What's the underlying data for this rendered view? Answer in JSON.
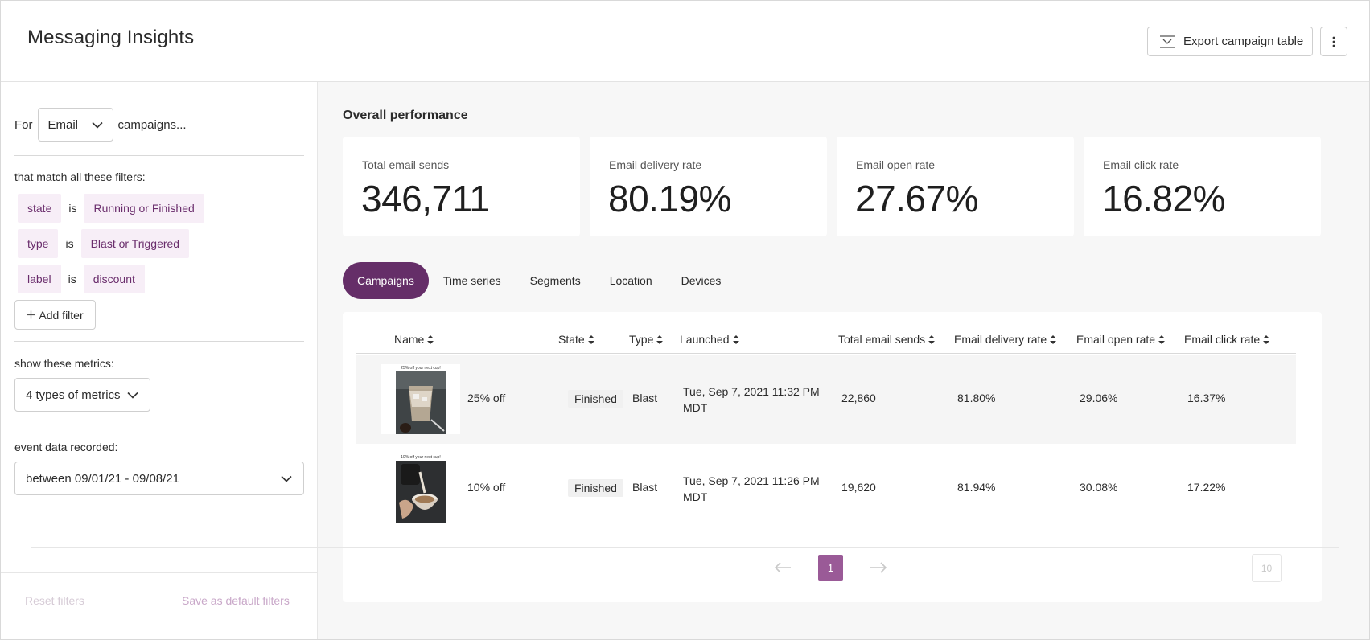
{
  "header": {
    "title": "Messaging Insights",
    "export_label": "Export campaign table",
    "export_icon": "export-tray-icon",
    "more_icon": "more-vertical-icon"
  },
  "sidebar": {
    "for_label": "For",
    "channel": "Email",
    "campaigns_suffix": "campaigns...",
    "filters_heading": "that match all these filters:",
    "filters": [
      {
        "field": "state",
        "op": "is",
        "value": "Running or Finished"
      },
      {
        "field": "type",
        "op": "is",
        "value": "Blast or Triggered"
      },
      {
        "field": "label",
        "op": "is",
        "value": "discount"
      }
    ],
    "add_filter_label": "Add filter",
    "metrics_heading": "show these metrics:",
    "metrics_value": "4 types of metrics",
    "event_heading": "event data recorded:",
    "date_range": "between 09/01/21 - 09/08/21",
    "reset_label": "Reset filters",
    "save_default_label": "Save as default filters"
  },
  "overview": {
    "title": "Overall performance",
    "kpis": [
      {
        "label": "Total email sends",
        "value": "346,711"
      },
      {
        "label": "Email delivery rate",
        "value": "80.19%"
      },
      {
        "label": "Email open rate",
        "value": "27.67%"
      },
      {
        "label": "Email click rate",
        "value": "16.82%"
      }
    ]
  },
  "tabs": [
    "Campaigns",
    "Time series",
    "Segments",
    "Location",
    "Devices"
  ],
  "active_tab": "Campaigns",
  "table": {
    "columns": [
      "Name",
      "State",
      "Type",
      "Launched",
      "Total email sends",
      "Email delivery rate",
      "Email open rate",
      "Email click rate"
    ],
    "rows": [
      {
        "thumb_caption": "25% off your next cup!",
        "name": "25% off",
        "state": "Finished",
        "type": "Blast",
        "launched_line1": "Tue, Sep 7, 2021 11:32 PM",
        "launched_line2": "MDT",
        "sends": "22,860",
        "delivery": "81.80%",
        "open": "29.06%",
        "click": "16.37%"
      },
      {
        "thumb_caption": "10% off your next cup!",
        "name": "10% off",
        "state": "Finished",
        "type": "Blast",
        "launched_line1": "Tue, Sep 7, 2021 11:26 PM",
        "launched_line2": "MDT",
        "sends": "19,620",
        "delivery": "81.94%",
        "open": "30.08%",
        "click": "17.22%"
      }
    ]
  },
  "pagination": {
    "current_page": "1",
    "page_size": "10"
  },
  "colors": {
    "accent": "#652e68",
    "chip_bg": "#f7eef7",
    "chip_text": "#6a2d6c",
    "page_current": "#9a5a97"
  }
}
